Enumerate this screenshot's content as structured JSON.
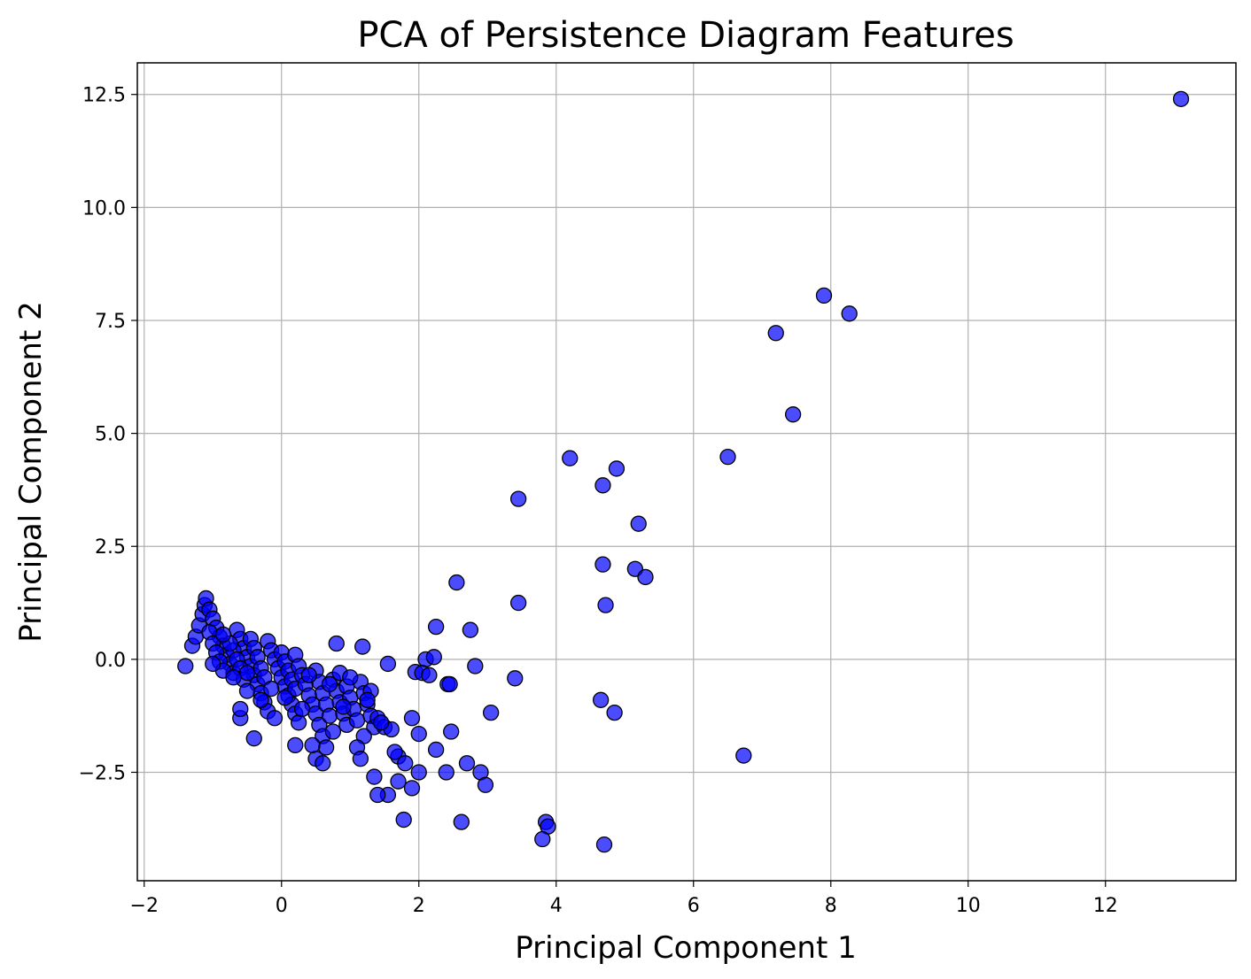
{
  "chart_data": {
    "type": "scatter",
    "title": "PCA of Persistence Diagram Features",
    "xlabel": "Principal Component 1",
    "ylabel": "Principal Component 2",
    "xlim": [
      -2.1,
      13.9
    ],
    "ylim": [
      -4.9,
      13.2
    ],
    "xticks": [
      -2,
      0,
      2,
      4,
      6,
      8,
      10,
      12
    ],
    "xtick_labels": [
      "−2",
      "0",
      "2",
      "4",
      "6",
      "8",
      "10",
      "12"
    ],
    "yticks": [
      -2.5,
      0.0,
      2.5,
      5.0,
      7.5,
      10.0,
      12.5
    ],
    "ytick_labels": [
      "−2.5",
      "0.0",
      "2.5",
      "5.0",
      "7.5",
      "10.0",
      "12.5"
    ],
    "grid": true,
    "marker_color": "#0000ff",
    "marker_alpha": 0.7,
    "marker_edge_color": "#000000",
    "series": [
      {
        "points": [
          [
            13.1,
            12.4
          ],
          [
            7.9,
            8.05
          ],
          [
            8.27,
            7.65
          ],
          [
            7.2,
            7.22
          ],
          [
            7.45,
            5.42
          ],
          [
            6.5,
            4.48
          ],
          [
            4.2,
            4.45
          ],
          [
            4.88,
            4.22
          ],
          [
            4.68,
            3.85
          ],
          [
            3.45,
            3.55
          ],
          [
            5.2,
            3.0
          ],
          [
            4.68,
            2.1
          ],
          [
            5.15,
            2.0
          ],
          [
            5.3,
            1.82
          ],
          [
            2.55,
            1.7
          ],
          [
            3.45,
            1.25
          ],
          [
            4.72,
            1.2
          ],
          [
            2.25,
            0.72
          ],
          [
            2.75,
            0.65
          ],
          [
            0.8,
            0.35
          ],
          [
            1.18,
            0.28
          ],
          [
            1.55,
            -0.1
          ],
          [
            2.1,
            0.0
          ],
          [
            2.22,
            0.05
          ],
          [
            2.82,
            -0.15
          ],
          [
            1.95,
            -0.28
          ],
          [
            2.05,
            -0.3
          ],
          [
            2.15,
            -0.35
          ],
          [
            2.42,
            -0.55
          ],
          [
            2.45,
            -0.55
          ],
          [
            3.4,
            -0.42
          ],
          [
            4.65,
            -0.9
          ],
          [
            4.85,
            -1.18
          ],
          [
            3.05,
            -1.18
          ],
          [
            2.47,
            -1.6
          ],
          [
            2.0,
            -1.65
          ],
          [
            1.9,
            -1.3
          ],
          [
            6.73,
            -2.13
          ],
          [
            2.25,
            -2.0
          ],
          [
            2.7,
            -2.3
          ],
          [
            2.9,
            -2.5
          ],
          [
            2.97,
            -2.78
          ],
          [
            2.4,
            -2.5
          ],
          [
            2.0,
            -2.5
          ],
          [
            1.7,
            -2.7
          ],
          [
            1.9,
            -2.85
          ],
          [
            1.55,
            -3.0
          ],
          [
            1.4,
            -3.0
          ],
          [
            1.78,
            -3.55
          ],
          [
            2.62,
            -3.6
          ],
          [
            3.85,
            -3.6
          ],
          [
            3.88,
            -3.7
          ],
          [
            3.8,
            -3.98
          ],
          [
            4.7,
            -4.1
          ],
          [
            -1.4,
            -0.15
          ],
          [
            -1.3,
            0.3
          ],
          [
            -1.25,
            0.5
          ],
          [
            -1.2,
            0.75
          ],
          [
            -1.15,
            1.0
          ],
          [
            -1.12,
            1.2
          ],
          [
            -1.1,
            1.35
          ],
          [
            -1.05,
            1.1
          ],
          [
            -1.0,
            0.9
          ],
          [
            -0.95,
            0.7
          ],
          [
            -0.9,
            0.5
          ],
          [
            -0.85,
            0.3
          ],
          [
            -0.8,
            0.1
          ],
          [
            -0.75,
            -0.1
          ],
          [
            -0.7,
            -0.3
          ],
          [
            -1.05,
            0.6
          ],
          [
            -1.0,
            0.35
          ],
          [
            -0.95,
            0.15
          ],
          [
            -0.9,
            -0.05
          ],
          [
            -0.85,
            -0.25
          ],
          [
            -0.65,
            0.65
          ],
          [
            -0.6,
            0.45
          ],
          [
            -0.55,
            0.25
          ],
          [
            -0.5,
            0.05
          ],
          [
            -0.45,
            -0.15
          ],
          [
            -0.4,
            -0.35
          ],
          [
            -0.35,
            -0.55
          ],
          [
            -0.3,
            -0.75
          ],
          [
            -0.25,
            -0.95
          ],
          [
            -0.2,
            -1.15
          ],
          [
            -0.7,
            0.2
          ],
          [
            -0.65,
            0.0
          ],
          [
            -0.6,
            -0.2
          ],
          [
            -0.55,
            -0.45
          ],
          [
            -0.5,
            -0.7
          ],
          [
            -0.45,
            0.45
          ],
          [
            -0.4,
            0.25
          ],
          [
            -0.35,
            0.05
          ],
          [
            -0.3,
            -0.2
          ],
          [
            -0.25,
            -0.4
          ],
          [
            -0.2,
            0.4
          ],
          [
            -0.15,
            0.2
          ],
          [
            -0.1,
            0.0
          ],
          [
            -0.05,
            -0.2
          ],
          [
            0.0,
            -0.4
          ],
          [
            0.05,
            -0.6
          ],
          [
            0.1,
            -0.8
          ],
          [
            0.15,
            -1.0
          ],
          [
            0.2,
            -1.2
          ],
          [
            0.25,
            -1.4
          ],
          [
            0.0,
            0.15
          ],
          [
            0.05,
            -0.05
          ],
          [
            0.1,
            -0.25
          ],
          [
            0.15,
            -0.45
          ],
          [
            0.2,
            -0.65
          ],
          [
            0.2,
            0.1
          ],
          [
            0.25,
            -0.15
          ],
          [
            0.3,
            -0.35
          ],
          [
            0.35,
            -0.55
          ],
          [
            0.4,
            -0.8
          ],
          [
            0.45,
            -1.0
          ],
          [
            0.5,
            -1.2
          ],
          [
            0.55,
            -1.45
          ],
          [
            0.6,
            -1.7
          ],
          [
            0.65,
            -1.95
          ],
          [
            0.5,
            -0.25
          ],
          [
            0.55,
            -0.5
          ],
          [
            0.6,
            -0.75
          ],
          [
            0.65,
            -1.0
          ],
          [
            0.7,
            -1.25
          ],
          [
            0.75,
            -0.45
          ],
          [
            0.8,
            -0.7
          ],
          [
            0.85,
            -0.95
          ],
          [
            0.9,
            -1.2
          ],
          [
            0.95,
            -1.45
          ],
          [
            0.85,
            -0.3
          ],
          [
            0.95,
            -0.6
          ],
          [
            1.0,
            -0.85
          ],
          [
            1.05,
            -1.1
          ],
          [
            1.1,
            -1.35
          ],
          [
            1.15,
            -0.5
          ],
          [
            1.2,
            -0.75
          ],
          [
            1.25,
            -1.0
          ],
          [
            1.3,
            -1.25
          ],
          [
            1.35,
            -1.5
          ],
          [
            1.2,
            -1.7
          ],
          [
            1.1,
            -1.95
          ],
          [
            1.15,
            -2.2
          ],
          [
            0.5,
            -2.2
          ],
          [
            0.6,
            -2.3
          ],
          [
            0.2,
            -1.9
          ],
          [
            -0.1,
            -1.3
          ],
          [
            -0.4,
            -1.75
          ],
          [
            -0.6,
            -1.3
          ],
          [
            -0.6,
            -1.1
          ],
          [
            1.4,
            -1.3
          ],
          [
            1.5,
            -1.5
          ],
          [
            1.6,
            -1.55
          ],
          [
            1.3,
            -0.7
          ],
          [
            1.45,
            -1.4
          ],
          [
            1.7,
            -2.15
          ],
          [
            1.8,
            -2.3
          ],
          [
            1.65,
            -2.05
          ],
          [
            1.35,
            -2.6
          ],
          [
            0.9,
            -1.05
          ],
          [
            0.75,
            -1.6
          ],
          [
            0.45,
            -1.9
          ],
          [
            0.3,
            -1.1
          ],
          [
            0.05,
            -0.85
          ],
          [
            -0.15,
            -0.65
          ],
          [
            -0.3,
            -0.9
          ],
          [
            -0.5,
            -0.3
          ],
          [
            -0.75,
            0.35
          ],
          [
            -0.85,
            0.55
          ],
          [
            -1.0,
            -0.1
          ],
          [
            -0.7,
            -0.4
          ],
          [
            0.4,
            -0.35
          ],
          [
            0.7,
            -0.55
          ],
          [
            1.0,
            -0.4
          ],
          [
            1.25,
            -0.9
          ]
        ]
      }
    ]
  }
}
